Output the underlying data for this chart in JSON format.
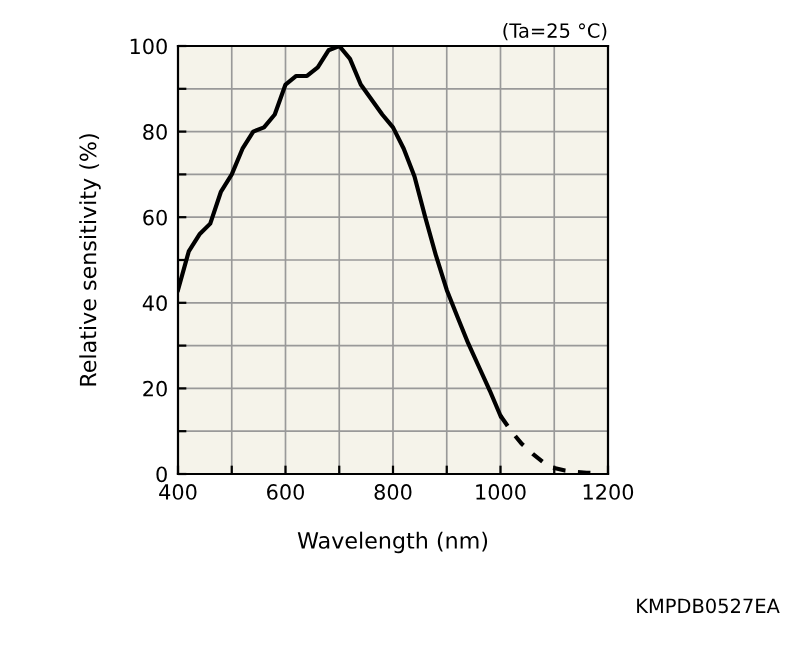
{
  "chart_data": {
    "type": "line",
    "xlabel": "Wavelength (nm)",
    "ylabel": "Relative sensitivity (%)",
    "annotations": [
      "(Ta=25 °C)",
      "KMPDB0527EA"
    ],
    "series": [
      {
        "color": "#000000",
        "line_style": "solid",
        "x": [
          400,
          420,
          440,
          460,
          480,
          500,
          520,
          540,
          560,
          580,
          600,
          620,
          640,
          660,
          680,
          700,
          720,
          740,
          760,
          780,
          800,
          820,
          840,
          860,
          880,
          900,
          920,
          940,
          960,
          980,
          1000
        ],
        "values": [
          43,
          52,
          56,
          58.5,
          66,
          70,
          76,
          80,
          81,
          84,
          91,
          93,
          93,
          95,
          99,
          100,
          97,
          91,
          87.5,
          84,
          81,
          76,
          69.5,
          60,
          51,
          43,
          36.7,
          30.5,
          25,
          19.5,
          13.6
        ]
      },
      {
        "color": "#000000",
        "line_style": "dashed",
        "x": [
          1000,
          1020,
          1040,
          1060,
          1080,
          1100,
          1120,
          1140,
          1160,
          1180
        ],
        "values": [
          13.6,
          10,
          7,
          4.7,
          2.7,
          1.4,
          0.8,
          0.5,
          0.3,
          0.2
        ]
      }
    ],
    "xlim": [
      400,
      1200
    ],
    "xticks": [
      400,
      {
        "value": 500,
        "label": null
      },
      600,
      {
        "value": 700,
        "label": null
      },
      800,
      {
        "value": 900,
        "label": null
      },
      1000,
      {
        "value": 1100,
        "label": null
      },
      1200
    ],
    "ylim": [
      0,
      100
    ],
    "yticks": [
      0,
      {
        "value": 10,
        "label": null
      },
      20,
      {
        "value": 30,
        "label": null
      },
      40,
      {
        "value": 50,
        "label": null
      },
      60,
      {
        "value": 70,
        "label": null
      },
      80,
      {
        "value": 90,
        "label": null
      },
      100
    ],
    "grid": true,
    "marker": "none"
  }
}
